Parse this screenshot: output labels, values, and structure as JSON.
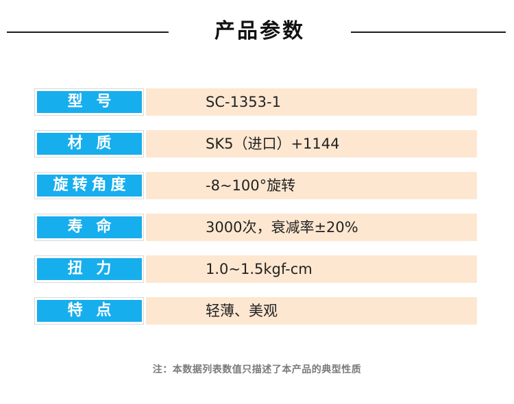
{
  "header": {
    "title": "产品参数"
  },
  "specs": [
    {
      "label": "型 号",
      "value": "SC-1353-1"
    },
    {
      "label": "材 质",
      "value": "SK5（进口）+1144"
    },
    {
      "label": "旋转角度",
      "value": "-8~100°旋转"
    },
    {
      "label": "寿 命",
      "value": "3000次，衰减率±20%"
    },
    {
      "label": "扭 力",
      "value": "1.0~1.5kgf-cm"
    },
    {
      "label": "特 点",
      "value": "轻薄、美观"
    }
  ],
  "footnote": "注：本数据列表数值只描述了本产品的典型性质",
  "colors": {
    "label_bg": "#17aeed",
    "value_bg": "#fde7d0"
  }
}
